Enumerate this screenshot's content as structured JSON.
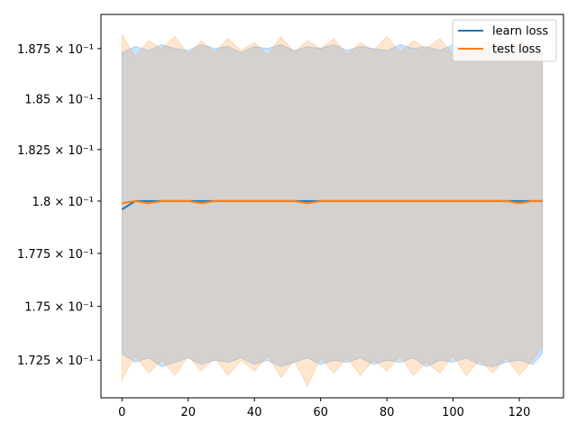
{
  "chart_data": {
    "type": "line",
    "title": "",
    "xlabel": "",
    "ylabel": "",
    "xlim": [
      -6.35,
      133.35
    ],
    "ylim": [
      0.17077,
      0.18922
    ],
    "yscale": "log",
    "grid": false,
    "legend_position": "top-right",
    "x_ticks": [
      0,
      20,
      40,
      60,
      80,
      100,
      120
    ],
    "y_ticks": [
      {
        "value": 0.1725,
        "label": "1.725 × 10⁻¹"
      },
      {
        "value": 0.175,
        "label": "1.75 × 10⁻¹"
      },
      {
        "value": 0.1775,
        "label": "1.775 × 10⁻¹"
      },
      {
        "value": 0.18,
        "label": "1.8 × 10⁻¹"
      },
      {
        "value": 0.1825,
        "label": "1.825 × 10⁻¹"
      },
      {
        "value": 0.185,
        "label": "1.85 × 10⁻¹"
      },
      {
        "value": 0.1875,
        "label": "1.875 × 10⁻¹"
      }
    ],
    "x": [
      0,
      4,
      8,
      12,
      16,
      20,
      24,
      28,
      32,
      36,
      40,
      44,
      48,
      52,
      56,
      60,
      64,
      68,
      72,
      76,
      80,
      84,
      88,
      92,
      96,
      100,
      104,
      108,
      112,
      116,
      120,
      124,
      127
    ],
    "series": [
      {
        "name": "learn loss",
        "color": "#1f77b4",
        "band_color": "#1f8fff",
        "values": [
          0.1796,
          0.18,
          0.18,
          0.18,
          0.18,
          0.18,
          0.18,
          0.18,
          0.18,
          0.18,
          0.18,
          0.18,
          0.18,
          0.18,
          0.18,
          0.18,
          0.18,
          0.18,
          0.18,
          0.18,
          0.18,
          0.18,
          0.18,
          0.18,
          0.18,
          0.18,
          0.18,
          0.18,
          0.18,
          0.18,
          0.18,
          0.18,
          0.18
        ],
        "upper": [
          0.1873,
          0.1876,
          0.1874,
          0.1877,
          0.1875,
          0.1874,
          0.1877,
          0.1875,
          0.1876,
          0.1873,
          0.1876,
          0.1875,
          0.1877,
          0.1874,
          0.1876,
          0.1875,
          0.1877,
          0.1874,
          0.1876,
          0.1875,
          0.1874,
          0.1877,
          0.1875,
          0.1876,
          0.1874,
          0.1877,
          0.1875,
          0.1873,
          0.1876,
          0.1874,
          0.1876,
          0.1874,
          0.1876
        ],
        "lower": [
          0.1728,
          0.1724,
          0.1726,
          0.1722,
          0.1724,
          0.1726,
          0.1723,
          0.1725,
          0.1724,
          0.1726,
          0.1723,
          0.1725,
          0.1722,
          0.1724,
          0.1726,
          0.1723,
          0.1725,
          0.1724,
          0.1726,
          0.1723,
          0.1725,
          0.1724,
          0.1726,
          0.1722,
          0.1725,
          0.1724,
          0.1726,
          0.1723,
          0.1722,
          0.1724,
          0.1725,
          0.1723,
          0.1728
        ]
      },
      {
        "name": "test loss",
        "color": "#ff7f0e",
        "band_color": "#ff9a3c",
        "values": [
          0.1799,
          0.18,
          0.1799,
          0.18,
          0.18,
          0.18,
          0.1799,
          0.18,
          0.18,
          0.18,
          0.18,
          0.18,
          0.18,
          0.18,
          0.1799,
          0.18,
          0.18,
          0.18,
          0.18,
          0.18,
          0.18,
          0.18,
          0.18,
          0.18,
          0.18,
          0.18,
          0.18,
          0.18,
          0.18,
          0.18,
          0.1799,
          0.18,
          0.18
        ],
        "upper": [
          0.1882,
          0.1871,
          0.1879,
          0.1875,
          0.1881,
          0.1872,
          0.1879,
          0.1873,
          0.188,
          0.1874,
          0.1878,
          0.1872,
          0.1881,
          0.1873,
          0.1879,
          0.1875,
          0.188,
          0.1872,
          0.1878,
          0.1874,
          0.1881,
          0.1873,
          0.1879,
          0.1875,
          0.188,
          0.1872,
          0.1878,
          0.1874,
          0.1881,
          0.1873,
          0.1879,
          0.1875,
          0.1872
        ],
        "lower": [
          0.1716,
          0.1727,
          0.1719,
          0.1725,
          0.1718,
          0.1727,
          0.172,
          0.1726,
          0.1718,
          0.1725,
          0.172,
          0.1727,
          0.1717,
          0.1725,
          0.1713,
          0.1726,
          0.1719,
          0.1726,
          0.1718,
          0.1725,
          0.172,
          0.1727,
          0.1718,
          0.1724,
          0.1719,
          0.1727,
          0.1718,
          0.1725,
          0.1719,
          0.1726,
          0.1718,
          0.1725,
          0.1731
        ]
      }
    ]
  }
}
